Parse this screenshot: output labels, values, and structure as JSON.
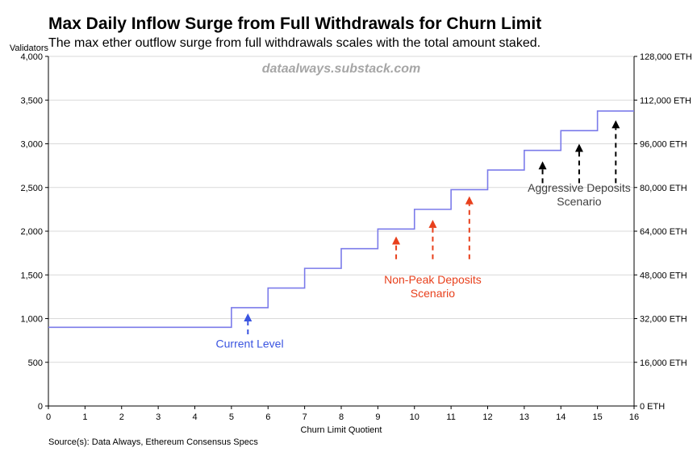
{
  "title": "Max Daily Inflow Surge from Full Withdrawals for Churn Limit",
  "subtitle": "The max ether outflow surge from full withdrawals scales with the total amount staked.",
  "source": "Source(s): Data Always, Ethereum Consensus Specs",
  "chart_data": {
    "type": "line",
    "step": true,
    "watermark": "dataalways.substack.com",
    "xlabel": "Churn Limit Quotient",
    "ylabel": "Validators",
    "xlim": [
      0,
      16
    ],
    "ylim": [
      0,
      4000
    ],
    "x_ticks": [
      0,
      1,
      2,
      3,
      4,
      5,
      6,
      7,
      8,
      9,
      10,
      11,
      12,
      13,
      14,
      15,
      16
    ],
    "y_ticks": [
      {
        "value": 0,
        "label": "0"
      },
      {
        "value": 500,
        "label": "500"
      },
      {
        "value": 1000,
        "label": "1,000"
      },
      {
        "value": 1500,
        "label": "1,500"
      },
      {
        "value": 2000,
        "label": "2,000"
      },
      {
        "value": 2500,
        "label": "2,500"
      },
      {
        "value": 3000,
        "label": "3,000"
      },
      {
        "value": 3500,
        "label": "3,500"
      },
      {
        "value": 4000,
        "label": "4,000"
      }
    ],
    "y2_ticks": [
      {
        "value": 0,
        "label": "0 ETH"
      },
      {
        "value": 500,
        "label": "16,000 ETH"
      },
      {
        "value": 1000,
        "label": "32,000 ETH"
      },
      {
        "value": 1500,
        "label": "48,000 ETH"
      },
      {
        "value": 2000,
        "label": "64,000 ETH"
      },
      {
        "value": 2500,
        "label": "80,000 ETH"
      },
      {
        "value": 3000,
        "label": "96,000 ETH"
      },
      {
        "value": 3500,
        "label": "112,000 ETH"
      },
      {
        "value": 4000,
        "label": "128,000 ETH"
      }
    ],
    "grid": true,
    "line_color": "#7b7bea",
    "series": [
      {
        "x": [
          0,
          5,
          6,
          7,
          8,
          9,
          10,
          11,
          12,
          13,
          14,
          15,
          16
        ],
        "y": [
          900,
          1125,
          1350,
          1575,
          1800,
          2025,
          2250,
          2475,
          2700,
          2925,
          3150,
          3375,
          3375
        ]
      }
    ],
    "annotations": [
      {
        "label": "Current Level",
        "color": "#3a54e0",
        "arrows": [
          {
            "x": 5.45,
            "y_from": 820,
            "y_to": 1060
          }
        ],
        "text_x": 5.5,
        "text_y": 670
      },
      {
        "label": "Non-Peak Deposits\nScenario",
        "color": "#e8401c",
        "arrows": [
          {
            "x": 9.5,
            "y_from": 1680,
            "y_to": 1940
          },
          {
            "x": 10.5,
            "y_from": 1680,
            "y_to": 2130
          },
          {
            "x": 11.5,
            "y_from": 1680,
            "y_to": 2400
          }
        ],
        "text_x": 10.5,
        "text_y": 1400
      },
      {
        "label": "Aggressive Deposits\nScenario",
        "color": "#000000",
        "text_color": "#404040",
        "arrows": [
          {
            "x": 13.5,
            "y_from": 2550,
            "y_to": 2800
          },
          {
            "x": 14.5,
            "y_from": 2550,
            "y_to": 3000
          },
          {
            "x": 15.5,
            "y_from": 2550,
            "y_to": 3270
          }
        ],
        "text_x": 14.5,
        "text_y": 2450
      }
    ]
  }
}
